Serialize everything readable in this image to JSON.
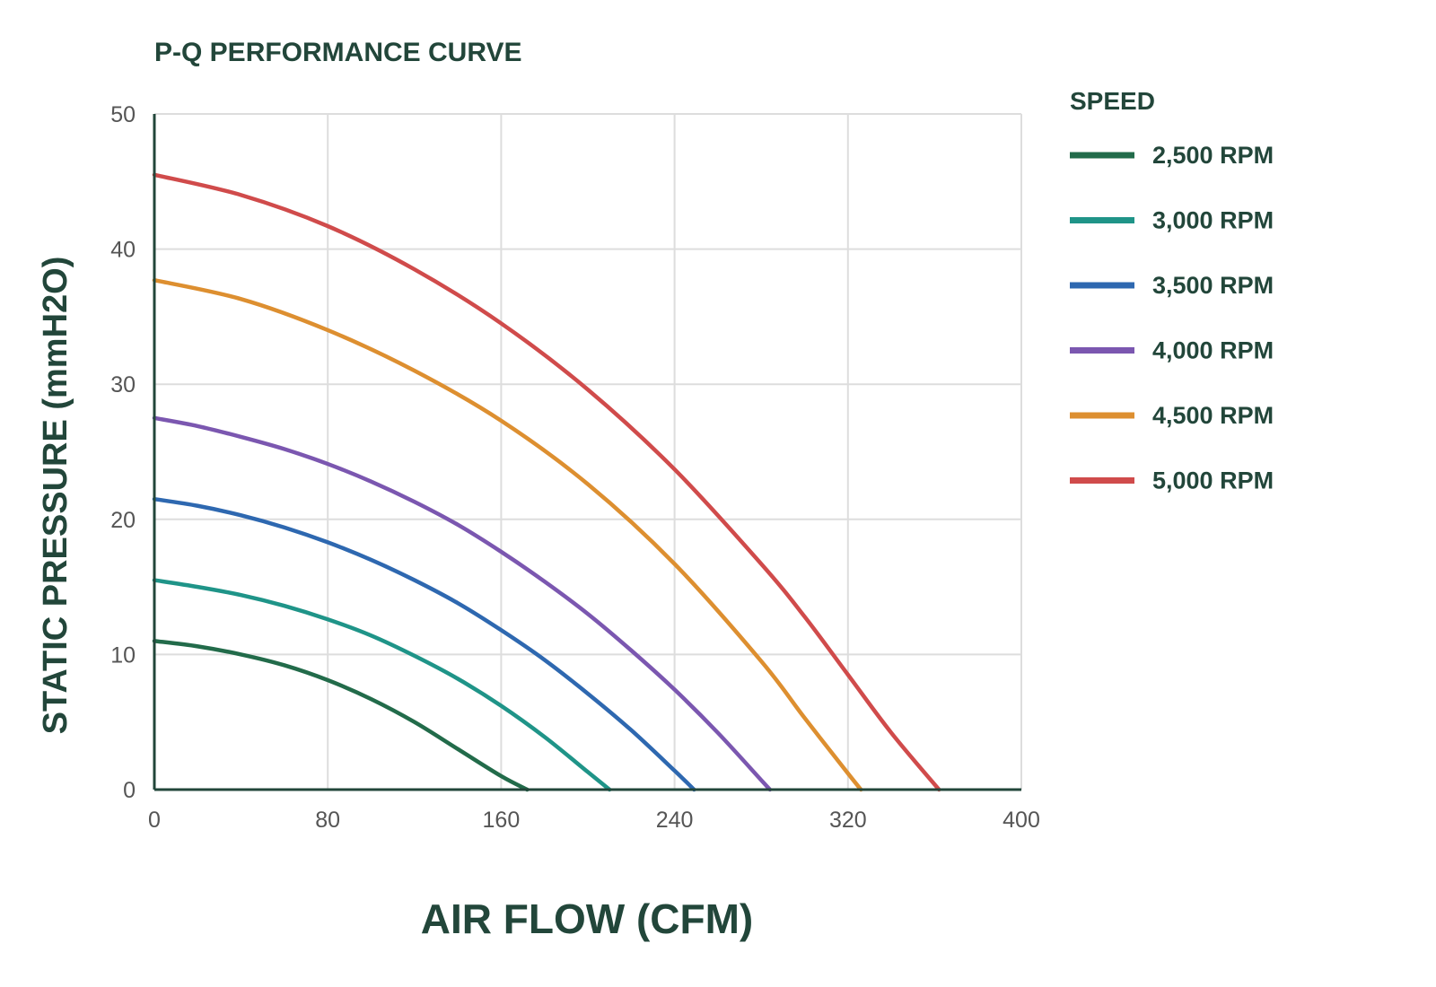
{
  "colors": {
    "text_dark": "#22463a",
    "tick_text": "#555555",
    "grid": "#dddddd",
    "axis": "#22463a"
  },
  "chart_data": {
    "type": "line",
    "title": "P-Q PERFORMANCE CURVE",
    "xlabel": "AIR FLOW (CFM)",
    "ylabel": "STATIC PRESSURE (mmH2O)",
    "xlim": [
      0,
      400
    ],
    "ylim": [
      0,
      50
    ],
    "x_ticks": [
      0,
      80,
      160,
      240,
      320,
      400
    ],
    "y_ticks": [
      0,
      10,
      20,
      30,
      40,
      50
    ],
    "x_tick_labels": [
      "0",
      "80",
      "160",
      "240",
      "320",
      "400"
    ],
    "y_tick_labels": [
      "0",
      "10",
      "20",
      "30",
      "40",
      "50"
    ],
    "grid": true,
    "legend": {
      "title": "SPEED",
      "placement": "right"
    },
    "series": [
      {
        "name": "2,500 RPM",
        "color": "#226b4a",
        "x": [
          0,
          20,
          40,
          60,
          80,
          100,
          120,
          140,
          160,
          172
        ],
        "y": [
          11.0,
          10.6,
          10.0,
          9.2,
          8.1,
          6.7,
          5.0,
          3.0,
          1.0,
          0
        ]
      },
      {
        "name": "3,000 RPM",
        "color": "#1f9488",
        "x": [
          0,
          20,
          40,
          60,
          80,
          100,
          120,
          140,
          160,
          180,
          200,
          210
        ],
        "y": [
          15.5,
          15.0,
          14.4,
          13.6,
          12.6,
          11.4,
          9.9,
          8.2,
          6.2,
          3.9,
          1.3,
          0
        ]
      },
      {
        "name": "3,500 RPM",
        "color": "#2e68b0",
        "x": [
          0,
          20,
          40,
          60,
          80,
          100,
          120,
          140,
          160,
          180,
          200,
          220,
          240,
          249
        ],
        "y": [
          21.5,
          21.0,
          20.3,
          19.4,
          18.3,
          17.0,
          15.5,
          13.8,
          11.8,
          9.6,
          7.1,
          4.4,
          1.4,
          0
        ]
      },
      {
        "name": "4,000 RPM",
        "color": "#7b57b0",
        "x": [
          0,
          20,
          40,
          60,
          80,
          100,
          120,
          140,
          160,
          180,
          200,
          220,
          240,
          260,
          280,
          284
        ],
        "y": [
          27.5,
          26.9,
          26.1,
          25.2,
          24.1,
          22.8,
          21.3,
          19.6,
          17.6,
          15.4,
          13.0,
          10.3,
          7.4,
          4.2,
          0.7,
          0
        ]
      },
      {
        "name": "4,500 RPM",
        "color": "#dd8f30",
        "x": [
          0,
          40,
          80,
          120,
          160,
          200,
          240,
          280,
          300,
          320,
          326
        ],
        "y": [
          37.7,
          36.3,
          34.0,
          31.0,
          27.3,
          22.6,
          16.7,
          9.5,
          5.3,
          1.2,
          0
        ]
      },
      {
        "name": "5,000 RPM",
        "color": "#d04b4b",
        "x": [
          0,
          40,
          80,
          120,
          160,
          200,
          240,
          280,
          300,
          320,
          340,
          362
        ],
        "y": [
          45.5,
          44.0,
          41.7,
          38.5,
          34.5,
          29.6,
          23.7,
          16.7,
          12.8,
          8.5,
          4.2,
          0
        ]
      }
    ]
  }
}
